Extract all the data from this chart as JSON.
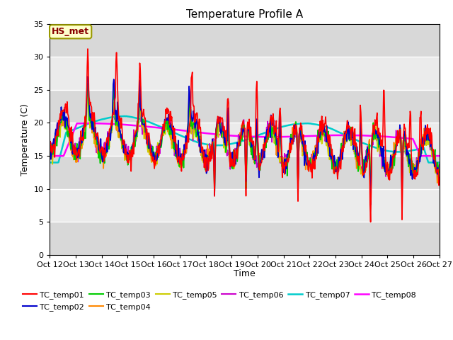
{
  "title": "Temperature Profile A",
  "xlabel": "Time",
  "ylabel": "Temperature (C)",
  "ylim": [
    0,
    35
  ],
  "yticks": [
    0,
    5,
    10,
    15,
    20,
    25,
    30,
    35
  ],
  "x_labels": [
    "Oct 12",
    "Oct 13",
    "Oct 14",
    "Oct 15",
    "Oct 16",
    "Oct 17",
    "Oct 18",
    "Oct 19",
    "Oct 20",
    "Oct 21",
    "Oct 22",
    "Oct 23",
    "Oct 24",
    "Oct 25",
    "Oct 26",
    "Oct 27"
  ],
  "annotation": "HS_met",
  "series_colors": {
    "TC_temp01": "#ff0000",
    "TC_temp02": "#0000cc",
    "TC_temp03": "#00cc00",
    "TC_temp04": "#ff8800",
    "TC_temp05": "#cccc00",
    "TC_temp06": "#cc00cc",
    "TC_temp07": "#00cccc",
    "TC_temp08": "#ff00ff"
  },
  "series_linewidths": {
    "TC_temp01": 1.2,
    "TC_temp02": 1.2,
    "TC_temp03": 1.2,
    "TC_temp04": 1.2,
    "TC_temp05": 1.2,
    "TC_temp06": 1.2,
    "TC_temp07": 1.8,
    "TC_temp08": 1.8
  },
  "plot_bg_color": "#ebebeb",
  "band_color": "#d8d8d8",
  "fig_bg": "#ffffff"
}
